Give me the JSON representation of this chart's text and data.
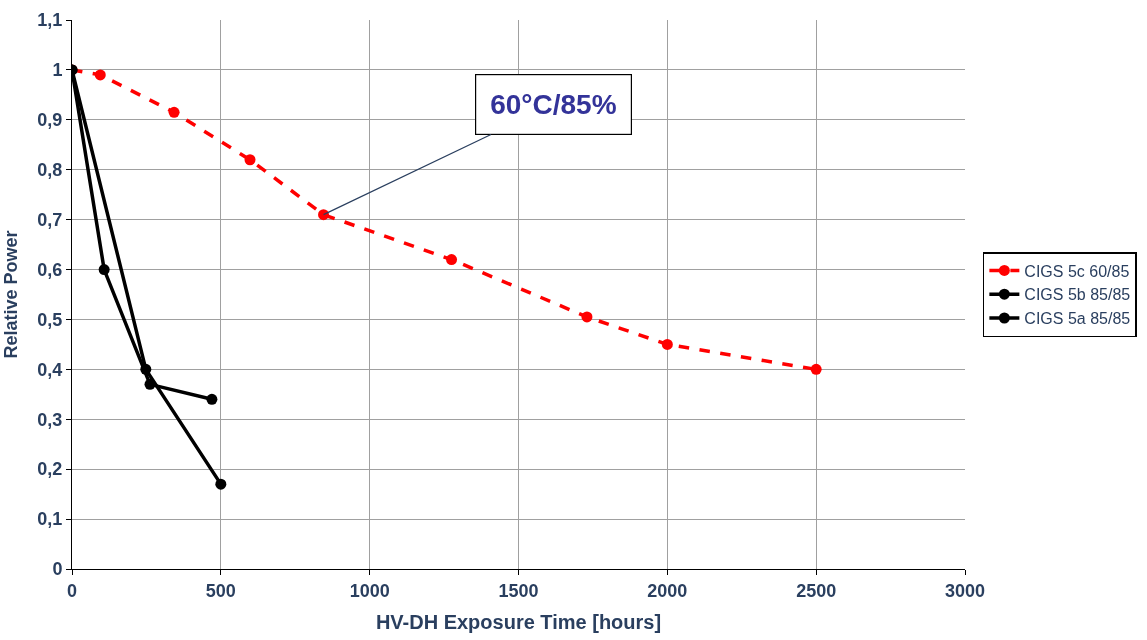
{
  "chart_data": {
    "type": "line",
    "xlabel": "HV-DH Exposure Time [hours]",
    "ylabel": "Relative Power",
    "series": [
      {
        "name": "CIGS 5c 60/85",
        "color": "#ff0000",
        "line_style": "dashed",
        "x": [
          0,
          95,
          343,
          598,
          845,
          1275,
          1730,
          2000,
          2500
        ],
        "values": [
          1.0,
          0.99,
          0.915,
          0.82,
          0.71,
          0.62,
          0.505,
          0.45,
          0.4
        ]
      },
      {
        "name": "CIGS 5b 85/85",
        "color": "#000000",
        "line_style": "solid",
        "x": [
          0,
          108,
          262,
          470
        ],
        "values": [
          1.0,
          0.6,
          0.37,
          0.34
        ]
      },
      {
        "name": "CIGS 5a 85/85",
        "color": "#000000",
        "line_style": "solid",
        "x": [
          0,
          248,
          500
        ],
        "values": [
          1.0,
          0.4,
          0.17
        ]
      }
    ],
    "xlim": [
      0,
      3000
    ],
    "xticks": [
      0,
      500,
      1000,
      1500,
      2000,
      2500,
      3000
    ],
    "ylim": [
      0,
      1.1
    ],
    "yticks": [
      0,
      {
        "value": 0.1,
        "label": "0,1"
      },
      {
        "value": 0.2,
        "label": "0,2"
      },
      {
        "value": 0.3,
        "label": "0,3"
      },
      {
        "value": 0.4,
        "label": "0,4"
      },
      {
        "value": 0.5,
        "label": "0,5"
      },
      {
        "value": 0.6,
        "label": "0,6"
      },
      {
        "value": 0.7,
        "label": "0,7"
      },
      {
        "value": 0.8,
        "label": "0,8"
      },
      {
        "value": 0.9,
        "label": "0,9"
      },
      1,
      {
        "value": 1.1,
        "label": "1,1"
      }
    ],
    "annotations": [
      {
        "text": "60°C/85%",
        "x": 845,
        "y": 0.71
      }
    ],
    "grid": true,
    "legend": "right",
    "marker": "circle"
  }
}
